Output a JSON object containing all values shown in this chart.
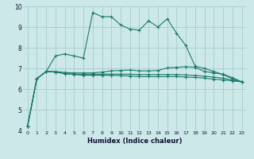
{
  "xlabel": "Humidex (Indice chaleur)",
  "x": [
    0,
    1,
    2,
    3,
    4,
    5,
    6,
    7,
    8,
    9,
    10,
    11,
    12,
    13,
    14,
    15,
    16,
    17,
    18,
    19,
    20,
    21,
    22,
    23
  ],
  "line1": [
    4.2,
    6.5,
    6.85,
    7.6,
    7.7,
    7.6,
    7.5,
    9.7,
    9.5,
    9.5,
    9.1,
    8.9,
    8.85,
    9.3,
    9.0,
    9.4,
    8.7,
    8.1,
    7.1,
    7.0,
    6.85,
    6.7,
    6.5,
    6.35
  ],
  "line2": [
    4.2,
    6.5,
    6.85,
    6.85,
    6.8,
    6.78,
    6.78,
    6.78,
    6.82,
    6.88,
    6.9,
    6.92,
    6.88,
    6.88,
    6.9,
    7.02,
    7.05,
    7.08,
    7.05,
    6.85,
    6.78,
    6.72,
    6.55,
    6.35
  ],
  "line3": [
    4.2,
    6.5,
    6.85,
    6.82,
    6.75,
    6.72,
    6.72,
    6.72,
    6.72,
    6.72,
    6.72,
    6.72,
    6.7,
    6.7,
    6.7,
    6.7,
    6.7,
    6.68,
    6.66,
    6.62,
    6.58,
    6.52,
    6.44,
    6.35
  ],
  "line4": [
    4.2,
    6.5,
    6.85,
    6.82,
    6.75,
    6.7,
    6.67,
    6.67,
    6.67,
    6.66,
    6.65,
    6.63,
    6.6,
    6.6,
    6.6,
    6.6,
    6.6,
    6.58,
    6.56,
    6.53,
    6.48,
    6.44,
    6.4,
    6.35
  ],
  "line_color": "#1a7a6e",
  "bg_color": "#cde8e8",
  "grid_color": "#aad0d0",
  "ylim": [
    4,
    10
  ],
  "xlim": [
    -0.5,
    23.5
  ],
  "yticks": [
    4,
    5,
    6,
    7,
    8,
    9,
    10
  ],
  "xticks": [
    0,
    1,
    2,
    3,
    4,
    5,
    6,
    7,
    8,
    9,
    10,
    11,
    12,
    13,
    14,
    15,
    16,
    17,
    18,
    19,
    20,
    21,
    22,
    23
  ]
}
